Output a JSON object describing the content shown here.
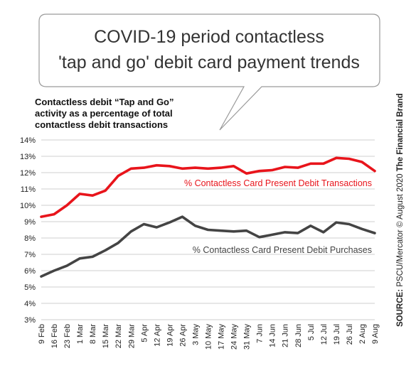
{
  "chart_data": {
    "type": "line",
    "title_lines": [
      "COVID-19 period contactless",
      "'tap and go' debit card payment trends"
    ],
    "subtitle_lines": [
      "Contactless debit “Tap and Go”",
      "activity as a percentage of total",
      "contactless debit transactions"
    ],
    "categories": [
      "9 Feb",
      "16 Feb",
      "23 Feb",
      "1 Mar",
      "8 Mar",
      "15 Mar",
      "22 Mar",
      "29 Mar",
      "5 Apr",
      "12 Apr",
      "19 Apr",
      "26 Apr",
      "3 May",
      "10 May",
      "17 May",
      "24 May",
      "31 May",
      "7 Jun",
      "14 Jun",
      "21 Jun",
      "28 Jun",
      "5 Jul",
      "12 Jul",
      "19 Jul",
      "26 Jul",
      "2 Aug",
      "9 Aug"
    ],
    "y_ticks": [
      "3%",
      "4%",
      "5%",
      "6%",
      "7%",
      "8%",
      "9%",
      "10%",
      "11%",
      "12%",
      "13%",
      "14%"
    ],
    "ylim": [
      3,
      14
    ],
    "grid": true,
    "series": [
      {
        "name": "% Contactless Card Present Debit Transactions",
        "color": "#e8141b",
        "values": [
          9.3,
          9.45,
          10.0,
          10.7,
          10.6,
          10.9,
          11.8,
          12.25,
          12.3,
          12.45,
          12.4,
          12.25,
          12.3,
          12.25,
          12.3,
          12.4,
          11.95,
          12.1,
          12.15,
          12.35,
          12.3,
          12.55,
          12.55,
          12.9,
          12.85,
          12.65,
          12.1
        ]
      },
      {
        "name": "% Contactless Card Present Debit Purchases",
        "color": "#444444",
        "values": [
          5.65,
          6.0,
          6.3,
          6.75,
          6.85,
          7.25,
          7.7,
          8.4,
          8.85,
          8.65,
          8.95,
          9.3,
          8.75,
          8.5,
          8.45,
          8.4,
          8.45,
          8.05,
          8.2,
          8.35,
          8.3,
          8.75,
          8.35,
          8.95,
          8.85,
          8.55,
          8.3
        ]
      }
    ],
    "source": {
      "bold": "SOURCE:",
      "text": " PSCU/Mercator © August 2020 ",
      "brand": "The Financial Brand"
    }
  }
}
